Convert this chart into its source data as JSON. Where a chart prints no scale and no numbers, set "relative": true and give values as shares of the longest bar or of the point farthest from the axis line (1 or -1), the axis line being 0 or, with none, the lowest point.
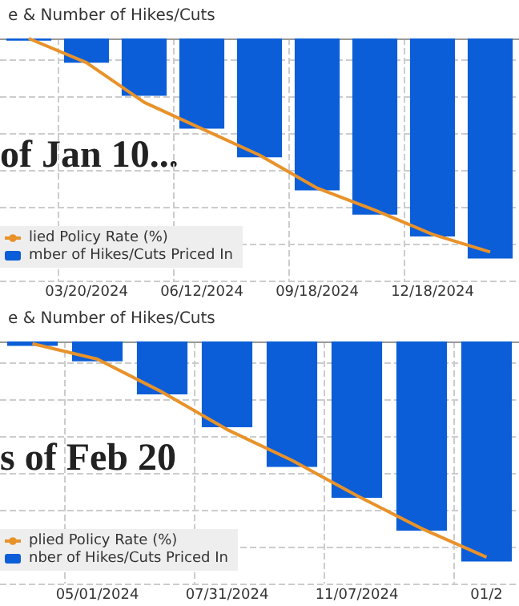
{
  "chart_data": [
    {
      "type": "bar",
      "title": "e & Number of Hikes/Cuts",
      "relative": true,
      "grid": true,
      "legend": "bottom left",
      "annotations": [
        "of Jan 10..."
      ],
      "categories": [
        null,
        "03/20/2024",
        null,
        "06/12/2024",
        null,
        "09/18/2024",
        null,
        "12/18/2024",
        null
      ],
      "series": [
        {
          "name": "mber of Hikes/Cuts Priced In",
          "color": "#0b5ed7",
          "values": [
            -0.01,
            -0.11,
            -0.26,
            -0.41,
            -0.54,
            -0.69,
            -0.8,
            -0.9,
            -1
          ]
        },
        {
          "name": "lied Policy Rate (%)",
          "type": "line",
          "color": "#e8922a",
          "marker": "none",
          "values": [
            0,
            -0.11,
            -0.29,
            -0.41,
            -0.53,
            -0.68,
            -0.78,
            -0.89,
            -0.97
          ]
        }
      ]
    },
    {
      "type": "bar",
      "title": "e & Number of Hikes/Cuts",
      "relative": true,
      "grid": true,
      "legend": "bottom left",
      "annotations": [
        "s of Feb 20"
      ],
      "categories": [
        null,
        "05/01/2024",
        null,
        "07/31/2024",
        null,
        "11/07/2024",
        null,
        "01/2"
      ],
      "series": [
        {
          "name": "nber of Hikes/Cuts Priced In",
          "color": "#0b5ed7",
          "values": [
            -0.02,
            -0.09,
            -0.24,
            -0.39,
            -0.57,
            -0.71,
            -0.86,
            -1
          ]
        },
        {
          "name": "plied Policy Rate (%)",
          "type": "line",
          "color": "#e8922a",
          "marker": "none",
          "values": [
            -0.01,
            -0.08,
            -0.23,
            -0.4,
            -0.54,
            -0.7,
            -0.85,
            -0.98
          ]
        }
      ]
    }
  ]
}
